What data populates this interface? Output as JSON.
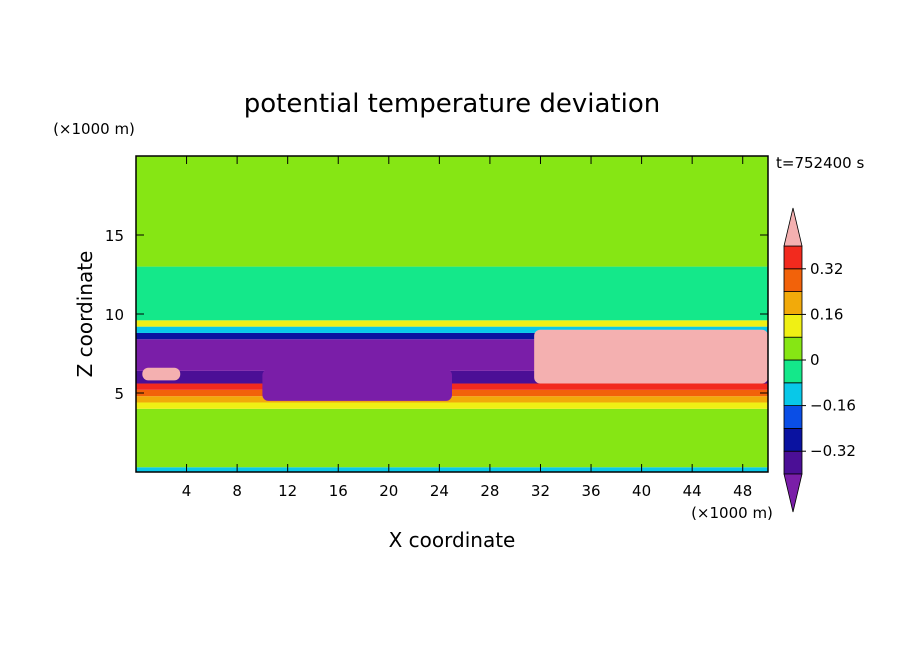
{
  "chart_data": {
    "type": "heatmap",
    "title": "potential temperature deviation",
    "xlabel": "X coordinate",
    "ylabel": "Z coordinate",
    "x_unit": "(×1000 m)",
    "y_unit": "(×1000 m)",
    "time_label": "t=752400 s",
    "xlim": [
      0,
      50
    ],
    "ylim": [
      0,
      20
    ],
    "x_ticks": [
      4,
      8,
      12,
      16,
      20,
      24,
      28,
      32,
      36,
      40,
      44,
      48
    ],
    "y_ticks": [
      5,
      10,
      15
    ],
    "colorbar": {
      "levels": [
        -0.48,
        -0.4,
        -0.32,
        -0.24,
        -0.16,
        -0.08,
        0,
        0.08,
        0.16,
        0.24,
        0.32,
        0.4,
        0.48
      ],
      "labels": [
        {
          "value": 0.32,
          "text": "0.32"
        },
        {
          "value": 0.16,
          "text": "0.16"
        },
        {
          "value": 0,
          "text": "0"
        },
        {
          "value": -0.16,
          "text": "−0.16"
        },
        {
          "value": -0.32,
          "text": "−0.32"
        }
      ],
      "colors": [
        "#7a1ea8",
        "#4b0f96",
        "#0a12a0",
        "#0a4ee6",
        "#08c8e8",
        "#14e88a",
        "#86e614",
        "#f0f014",
        "#f2aa0a",
        "#f2620a",
        "#f22a1e",
        "#f4b0b0"
      ],
      "extend": "both"
    },
    "layers": [
      {
        "z_from": 0.0,
        "z_to": 0.3,
        "value": -0.12
      },
      {
        "z_from": 0.3,
        "z_to": 4.0,
        "value": 0.04
      },
      {
        "z_from": 4.0,
        "z_to": 4.4,
        "value": 0.12
      },
      {
        "z_from": 4.4,
        "z_to": 4.8,
        "value": 0.2
      },
      {
        "z_from": 4.8,
        "z_to": 5.2,
        "value": 0.28
      },
      {
        "z_from": 5.2,
        "z_to": 5.6,
        "value": 0.36
      },
      {
        "z_from": 5.6,
        "z_to": 6.4,
        "value": -0.36
      },
      {
        "z_from": 6.4,
        "z_to": 8.4,
        "value": -0.44
      },
      {
        "z_from": 8.4,
        "z_to": 8.8,
        "value": -0.28
      },
      {
        "z_from": 8.8,
        "z_to": 9.2,
        "value": -0.12
      },
      {
        "z_from": 9.2,
        "z_to": 9.6,
        "value": 0.12
      },
      {
        "z_from": 9.6,
        "z_to": 13.0,
        "value": -0.04
      },
      {
        "z_from": 13.0,
        "z_to": 20.0,
        "value": 0.04
      }
    ],
    "regions": [
      {
        "x_from": 31.5,
        "x_to": 50,
        "z_from": 5.6,
        "z_to": 9.0,
        "value": 0.44
      },
      {
        "x_from": 31.5,
        "x_to": 50,
        "z_from": 5.4,
        "z_to": 5.6,
        "value": 0.36
      },
      {
        "x_from": 0.5,
        "x_to": 3.5,
        "z_from": 5.8,
        "z_to": 6.6,
        "value": 0.44
      },
      {
        "x_from": 10.0,
        "x_to": 25.0,
        "z_from": 4.5,
        "z_to": 6.5,
        "value": -0.44
      }
    ]
  }
}
